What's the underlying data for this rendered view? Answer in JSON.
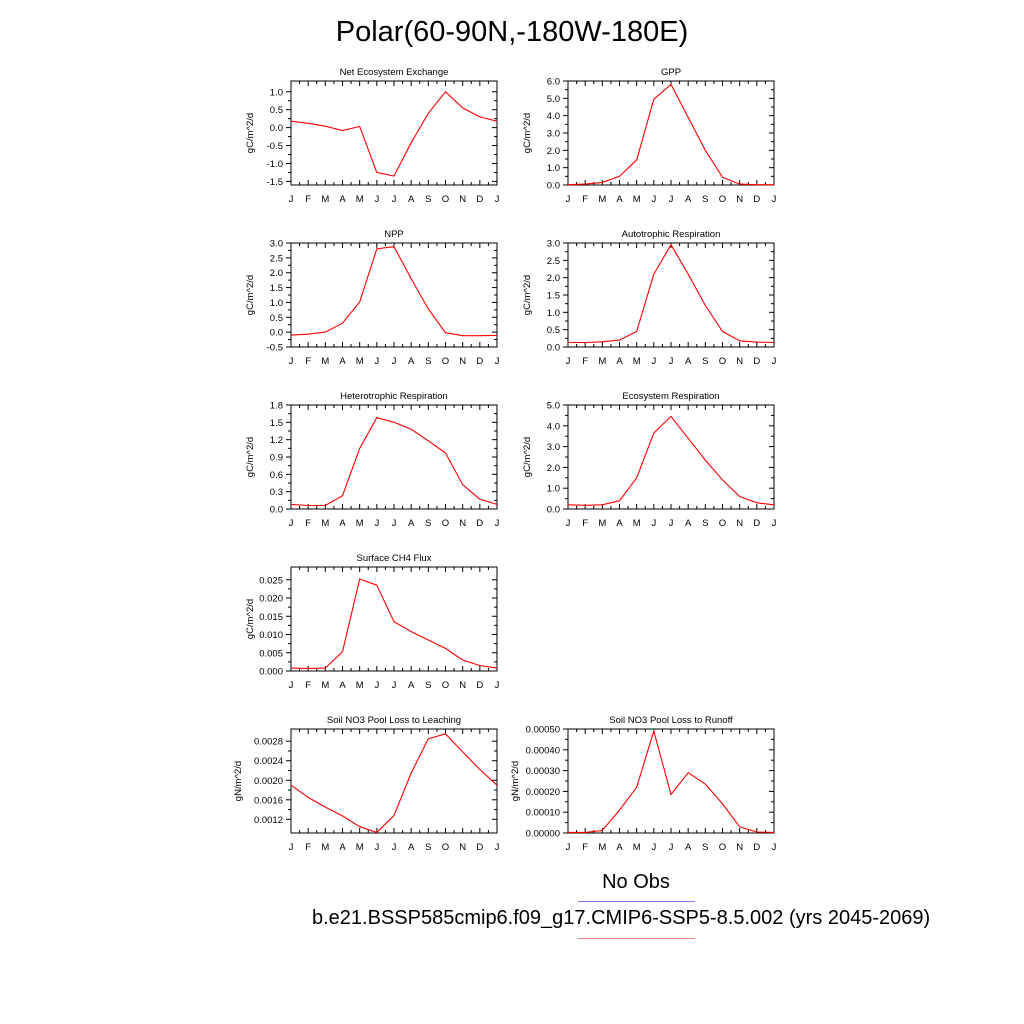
{
  "page": {
    "title": "Polar(60-90N,-180W-180E)",
    "legend_obs_label": "No Obs",
    "legend_case_label": "b.e21.BSSP585cmip6.f09_g17.CMIP6-SSP5-8.5.002 (yrs 2045-2069)",
    "obs_line_color": "#7777ee",
    "case_line_color": "#f08080"
  },
  "chart_data": [
    {
      "type": "line",
      "title": "Net Ecosystem Exchange",
      "ylabel": "gC/m^2/d",
      "xlabel": "",
      "categories": [
        "J",
        "F",
        "M",
        "A",
        "M",
        "J",
        "J",
        "A",
        "S",
        "O",
        "N",
        "D",
        "J"
      ],
      "values": [
        0.18,
        0.12,
        0.04,
        -0.08,
        0.03,
        -1.25,
        -1.35,
        -0.42,
        0.4,
        1.0,
        0.55,
        0.3,
        0.18
      ],
      "ylim": [
        -1.6,
        1.3
      ],
      "yticks": [
        -1.5,
        -1.0,
        -0.5,
        0.0,
        0.5,
        1.0
      ],
      "ytick_labels": [
        "-1.5",
        "-1.0",
        "-0.5",
        "0.0",
        "0.5",
        "1.0"
      ],
      "color": "#ff0000"
    },
    {
      "type": "line",
      "title": "GPP",
      "ylabel": "gC/m^2/d",
      "xlabel": "",
      "categories": [
        "J",
        "F",
        "M",
        "A",
        "M",
        "J",
        "J",
        "A",
        "S",
        "O",
        "N",
        "D",
        "J"
      ],
      "values": [
        0.02,
        0.05,
        0.15,
        0.5,
        1.45,
        4.95,
        5.8,
        3.9,
        2.0,
        0.45,
        0.05,
        0.02,
        0.02
      ],
      "ylim": [
        0,
        6
      ],
      "yticks": [
        0.0,
        1.0,
        2.0,
        3.0,
        4.0,
        5.0,
        6.0
      ],
      "ytick_labels": [
        "0.0",
        "1.0",
        "2.0",
        "3.0",
        "4.0",
        "5.0",
        "6.0"
      ],
      "color": "#ff0000"
    },
    {
      "type": "line",
      "title": "NPP",
      "ylabel": "gC/m^2/d",
      "xlabel": "",
      "categories": [
        "J",
        "F",
        "M",
        "A",
        "M",
        "J",
        "J",
        "A",
        "S",
        "O",
        "N",
        "D",
        "J"
      ],
      "values": [
        -0.1,
        -0.07,
        0.0,
        0.3,
        1.02,
        2.8,
        2.88,
        1.8,
        0.78,
        -0.02,
        -0.12,
        -0.12,
        -0.11
      ],
      "ylim": [
        -0.5,
        3.0
      ],
      "yticks": [
        -0.5,
        0.0,
        0.5,
        1.0,
        1.5,
        2.0,
        2.5,
        3.0
      ],
      "ytick_labels": [
        "-0.5",
        "0.0",
        "0.5",
        "1.0",
        "1.5",
        "2.0",
        "2.5",
        "3.0"
      ],
      "color": "#ff0000"
    },
    {
      "type": "line",
      "title": "Autotrophic Respiration",
      "ylabel": "gC/m^2/d",
      "xlabel": "",
      "categories": [
        "J",
        "F",
        "M",
        "A",
        "M",
        "J",
        "J",
        "A",
        "S",
        "O",
        "N",
        "D",
        "J"
      ],
      "values": [
        0.13,
        0.13,
        0.15,
        0.2,
        0.45,
        2.1,
        2.95,
        2.1,
        1.2,
        0.45,
        0.18,
        0.14,
        0.13
      ],
      "ylim": [
        0,
        3.0
      ],
      "yticks": [
        0.0,
        0.5,
        1.0,
        1.5,
        2.0,
        2.5,
        3.0
      ],
      "ytick_labels": [
        "0.0",
        "0.5",
        "1.0",
        "1.5",
        "2.0",
        "2.5",
        "3.0"
      ],
      "color": "#ff0000"
    },
    {
      "type": "line",
      "title": "Heterotrophic Respiration",
      "ylabel": "gC/m^2/d",
      "xlabel": "",
      "categories": [
        "J",
        "F",
        "M",
        "A",
        "M",
        "J",
        "J",
        "A",
        "S",
        "O",
        "N",
        "D",
        "J"
      ],
      "values": [
        0.08,
        0.06,
        0.06,
        0.23,
        1.05,
        1.58,
        1.5,
        1.38,
        1.18,
        0.97,
        0.42,
        0.17,
        0.08
      ],
      "ylim": [
        0,
        1.8
      ],
      "yticks": [
        0.0,
        0.3,
        0.6,
        0.9,
        1.2,
        1.5,
        1.8
      ],
      "ytick_labels": [
        "0.0",
        "0.3",
        "0.6",
        "0.9",
        "1.2",
        "1.5",
        "1.8"
      ],
      "color": "#ff0000"
    },
    {
      "type": "line",
      "title": "Ecosystem Respiration",
      "ylabel": "gC/m^2/d",
      "xlabel": "",
      "categories": [
        "J",
        "F",
        "M",
        "A",
        "M",
        "J",
        "J",
        "A",
        "S",
        "O",
        "N",
        "D",
        "J"
      ],
      "values": [
        0.2,
        0.18,
        0.2,
        0.4,
        1.5,
        3.65,
        4.45,
        3.4,
        2.35,
        1.4,
        0.6,
        0.3,
        0.2
      ],
      "ylim": [
        0,
        5.0
      ],
      "yticks": [
        0.0,
        1.0,
        2.0,
        3.0,
        4.0,
        5.0
      ],
      "ytick_labels": [
        "0.0",
        "1.0",
        "2.0",
        "3.0",
        "4.0",
        "5.0"
      ],
      "color": "#ff0000"
    },
    {
      "type": "line",
      "title": "Surface CH4 Flux",
      "ylabel": "gC/m^2/d",
      "xlabel": "",
      "categories": [
        "J",
        "F",
        "M",
        "A",
        "M",
        "J",
        "J",
        "A",
        "S",
        "O",
        "N",
        "D",
        "J"
      ],
      "values": [
        0.0008,
        0.0007,
        0.0008,
        0.0053,
        0.0252,
        0.0235,
        0.0135,
        0.0108,
        0.0085,
        0.0062,
        0.003,
        0.0015,
        0.0008
      ],
      "ylim": [
        0,
        0.0285
      ],
      "yticks": [
        0.0,
        0.005,
        0.01,
        0.015,
        0.02,
        0.025
      ],
      "ytick_labels": [
        "0.000",
        "0.005",
        "0.010",
        "0.015",
        "0.020",
        "0.025"
      ],
      "color": "#ff0000"
    },
    {
      "type": "line",
      "title": "Soil NO3 Pool Loss to Leaching",
      "ylabel": "gN/m^2/d",
      "xlabel": "",
      "categories": [
        "J",
        "F",
        "M",
        "A",
        "M",
        "J",
        "J",
        "A",
        "S",
        "O",
        "N",
        "D",
        "J"
      ],
      "values": [
        0.0019,
        0.00165,
        0.00145,
        0.00127,
        0.00105,
        0.00093,
        0.00128,
        0.00215,
        0.00285,
        0.00295,
        0.00258,
        0.00222,
        0.0019
      ],
      "ylim": [
        0.00092,
        0.00305
      ],
      "yticks": [
        0.0012,
        0.0016,
        0.002,
        0.0024,
        0.0028
      ],
      "ytick_labels": [
        "0.0012",
        "0.0016",
        "0.0020",
        "0.0024",
        "0.0028"
      ],
      "color": "#ff0000"
    },
    {
      "type": "line",
      "title": "Soil NO3 Pool Loss to Runoff",
      "ylabel": "gN/m^2/d",
      "xlabel": "",
      "categories": [
        "J",
        "F",
        "M",
        "A",
        "M",
        "J",
        "J",
        "A",
        "S",
        "O",
        "N",
        "D",
        "J"
      ],
      "values": [
        3e-06,
        3e-06,
        1.2e-05,
        0.00011,
        0.00022,
        0.00049,
        0.000185,
        0.00029,
        0.000235,
        0.00014,
        3e-05,
        5e-06,
        3e-06
      ],
      "ylim": [
        0,
        0.0005
      ],
      "yticks": [
        0.0,
        0.0001,
        0.0002,
        0.0003,
        0.0004,
        0.0005
      ],
      "ytick_labels": [
        "0.00000",
        "0.00010",
        "0.00020",
        "0.00030",
        "0.00040",
        "0.00050"
      ],
      "color": "#ff0000"
    }
  ]
}
